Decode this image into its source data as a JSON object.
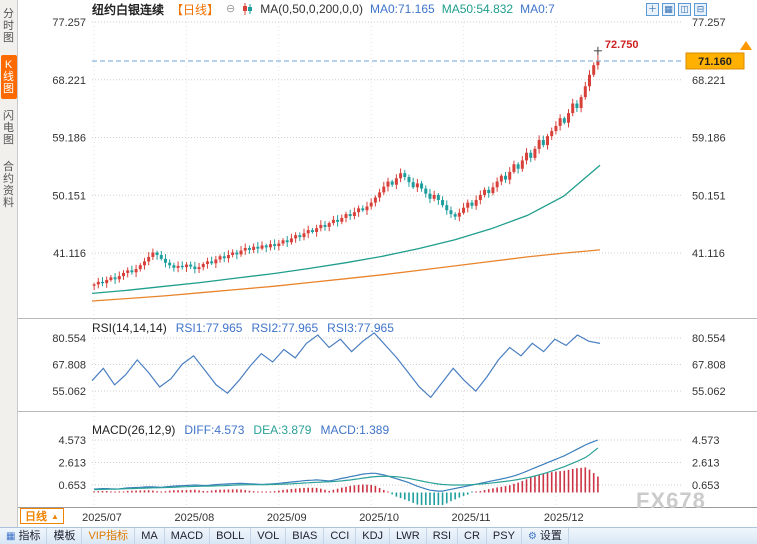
{
  "sidebar": {
    "items": [
      {
        "label": "分时图",
        "key": "time-chart",
        "active": false
      },
      {
        "label": "K线图",
        "key": "kline-chart",
        "active": true
      },
      {
        "label": "闪电图",
        "key": "lightning-chart",
        "active": false
      },
      {
        "label": "合约资料",
        "key": "contract-info",
        "active": false
      }
    ]
  },
  "header": {
    "title": "纽约白银连续",
    "period_tag": "【日线】",
    "ma_label": "MA(0,50,0,200,0,0)",
    "ma_values": [
      {
        "label": "MA0:71.165",
        "color": "#3f74c8"
      },
      {
        "label": "MA50:54.832",
        "color": "#1f9e8c"
      },
      {
        "label": "MA0:7",
        "color": "#3f74c8"
      }
    ],
    "window_icons": [
      {
        "name": "add-chart-icon",
        "glyph": "＋"
      },
      {
        "name": "grid-layout-icon",
        "glyph": "▦"
      },
      {
        "name": "split-vertical-icon",
        "glyph": "◫"
      },
      {
        "name": "split-horizontal-icon",
        "glyph": "⊟"
      }
    ]
  },
  "main_chart": {
    "y_labels": [
      "77.257",
      "68.221",
      "59.186",
      "50.151",
      "41.116"
    ],
    "high_label": "72.750",
    "price_badge": "71.160"
  },
  "rsi": {
    "title": "RSI(14,14,14)",
    "values": [
      {
        "label": "RSI1:77.965",
        "color": "#3f74c8"
      },
      {
        "label": "RSI2:77.965",
        "color": "#3f74c8"
      },
      {
        "label": "RSI3:77.965",
        "color": "#3f74c8"
      }
    ],
    "y_labels": [
      "80.554",
      "67.808",
      "55.062"
    ]
  },
  "macd": {
    "title": "MACD(26,12,9)",
    "values": [
      {
        "label": "DIFF:4.573",
        "color": "#3f74c8"
      },
      {
        "label": "DEA:3.879",
        "color": "#2aa198"
      },
      {
        "label": "MACD:1.389",
        "color": "#3f74c8"
      }
    ],
    "y_labels": [
      "4.573",
      "2.613",
      "0.653"
    ]
  },
  "x_axis": {
    "labels": [
      "2025/07",
      "2025/08",
      "2025/09",
      "2025/10",
      "2025/11",
      "2025/12"
    ],
    "period_label": "日线"
  },
  "toolbar": {
    "items": [
      {
        "label": "指标",
        "key": "indicators",
        "icon": "▦"
      },
      {
        "label": "模板",
        "key": "templates"
      },
      {
        "label": "VIP指标",
        "key": "vip-indicators",
        "color": "#e07a00"
      },
      {
        "label": "MA",
        "key": "ma"
      },
      {
        "label": "MACD",
        "key": "macd"
      },
      {
        "label": "BOLL",
        "key": "boll"
      },
      {
        "label": "VOL",
        "key": "vol"
      },
      {
        "label": "BIAS",
        "key": "bias"
      },
      {
        "label": "CCI",
        "key": "cci"
      },
      {
        "label": "KDJ",
        "key": "kdj"
      },
      {
        "label": "LWR",
        "key": "lwr"
      },
      {
        "label": "RSI",
        "key": "rsi"
      },
      {
        "label": "CR",
        "key": "cr"
      },
      {
        "label": "PSY",
        "key": "psy"
      },
      {
        "label": "设置",
        "key": "settings",
        "icon": "⚙"
      }
    ]
  },
  "watermark": "FX678",
  "colors": {
    "up": "#d8403a",
    "down": "#1f9e9e",
    "ma50": "#1f9e8c",
    "ma200": "#e8842c",
    "rsi": "#4a7ec0",
    "diff": "#3a7ebb",
    "dea": "#2aa198",
    "hist_pos": "#cc3344",
    "hist_neg": "#1f9e9e",
    "dashed_line": "#6aa0d8",
    "badge_bg": "#ffb000",
    "badge_border": "#d98c00",
    "high_label": "#cc2222",
    "accent": "#ff6a00"
  },
  "chart_data": {
    "type": "candlestick",
    "title": "纽约白银连续 日线 (NY Silver continuous, daily)",
    "x_labels": [
      "2025/07",
      "2025/08",
      "2025/09",
      "2025/10",
      "2025/11",
      "2025/12"
    ],
    "month_start_indices": [
      0,
      22,
      44,
      66,
      88,
      110
    ],
    "y_axis_main": [
      77.257,
      68.221,
      59.186,
      50.151,
      41.116
    ],
    "open_first": 36.0,
    "high": 72.75,
    "current_price": 71.16,
    "closes": [
      36.2,
      36.6,
      36.4,
      36.9,
      37.3,
      37.0,
      37.5,
      38.0,
      38.4,
      38.1,
      38.6,
      39.2,
      39.8,
      40.5,
      41.2,
      40.8,
      40.2,
      39.6,
      39.2,
      38.8,
      39.1,
      38.9,
      39.3,
      39.0,
      38.6,
      38.9,
      39.4,
      39.8,
      39.5,
      40.1,
      40.6,
      40.3,
      40.8,
      41.2,
      40.9,
      41.5,
      41.9,
      41.6,
      42.1,
      41.8,
      42.3,
      42.0,
      42.5,
      42.2,
      42.6,
      43.1,
      42.8,
      43.4,
      43.9,
      43.6,
      44.2,
      44.7,
      44.4,
      45.0,
      45.5,
      45.2,
      45.8,
      46.3,
      46.0,
      46.6,
      47.2,
      46.9,
      47.5,
      48.1,
      47.8,
      48.4,
      49.0,
      49.8,
      50.6,
      51.5,
      52.3,
      51.8,
      52.8,
      53.6,
      53.0,
      52.2,
      51.4,
      52.0,
      51.2,
      50.4,
      49.6,
      50.2,
      49.4,
      48.6,
      47.8,
      47.2,
      46.8,
      47.4,
      48.2,
      49.0,
      48.5,
      49.4,
      50.2,
      51.0,
      50.5,
      51.4,
      52.3,
      53.2,
      52.6,
      53.8,
      55.0,
      54.3,
      55.6,
      56.8,
      56.0,
      57.4,
      58.8,
      58.0,
      59.4,
      60.2,
      61.0,
      62.2,
      61.5,
      63.0,
      64.5,
      63.8,
      65.5,
      67.2,
      69.0,
      70.5,
      71.16
    ],
    "ma50": [
      34.8,
      35.3,
      35.9,
      36.5,
      37.2,
      37.9,
      38.7,
      39.6,
      40.6,
      41.8,
      43.2,
      44.9,
      47.0,
      50.0,
      54.83
    ],
    "ma200": [
      33.6,
      34.0,
      34.4,
      34.9,
      35.4,
      35.9,
      36.5,
      37.1,
      37.7,
      38.4,
      39.1,
      39.8,
      40.5,
      41.1,
      41.6
    ],
    "rsi": {
      "y_axis": [
        80.554,
        67.808,
        55.062
      ],
      "values": [
        60,
        66,
        58,
        63,
        70,
        64,
        57,
        61,
        68,
        72,
        65,
        58,
        54,
        60,
        67,
        73,
        69,
        75,
        71,
        78,
        82,
        76,
        80,
        74,
        79,
        83,
        77,
        71,
        64,
        57,
        52,
        59,
        66,
        60,
        55,
        62,
        70,
        76,
        72,
        78,
        74,
        80,
        77,
        82,
        79,
        77.965
      ]
    },
    "macd": {
      "y_axis": [
        4.573,
        2.613,
        0.653
      ],
      "diff": [
        0.3,
        0.35,
        0.3,
        0.4,
        0.45,
        0.5,
        0.45,
        0.55,
        0.6,
        0.65,
        0.6,
        0.7,
        0.75,
        0.8,
        0.75,
        0.7,
        0.75,
        0.85,
        0.95,
        1.05,
        1.1,
        1.0,
        1.2,
        1.4,
        1.6,
        1.7,
        1.5,
        1.2,
        0.9,
        0.5,
        0.2,
        0.1,
        0.3,
        0.5,
        0.7,
        0.9,
        1.1,
        1.3,
        1.6,
        2.0,
        2.4,
        2.8,
        3.2,
        3.7,
        4.2,
        4.573
      ],
      "dea": [
        0.25,
        0.28,
        0.3,
        0.33,
        0.36,
        0.4,
        0.42,
        0.45,
        0.5,
        0.53,
        0.55,
        0.58,
        0.62,
        0.66,
        0.68,
        0.68,
        0.7,
        0.73,
        0.78,
        0.84,
        0.9,
        0.93,
        1.0,
        1.1,
        1.25,
        1.38,
        1.42,
        1.38,
        1.25,
        1.05,
        0.85,
        0.7,
        0.65,
        0.65,
        0.7,
        0.78,
        0.88,
        1.0,
        1.15,
        1.35,
        1.6,
        1.9,
        2.25,
        2.65,
        3.1,
        3.879
      ]
    }
  }
}
